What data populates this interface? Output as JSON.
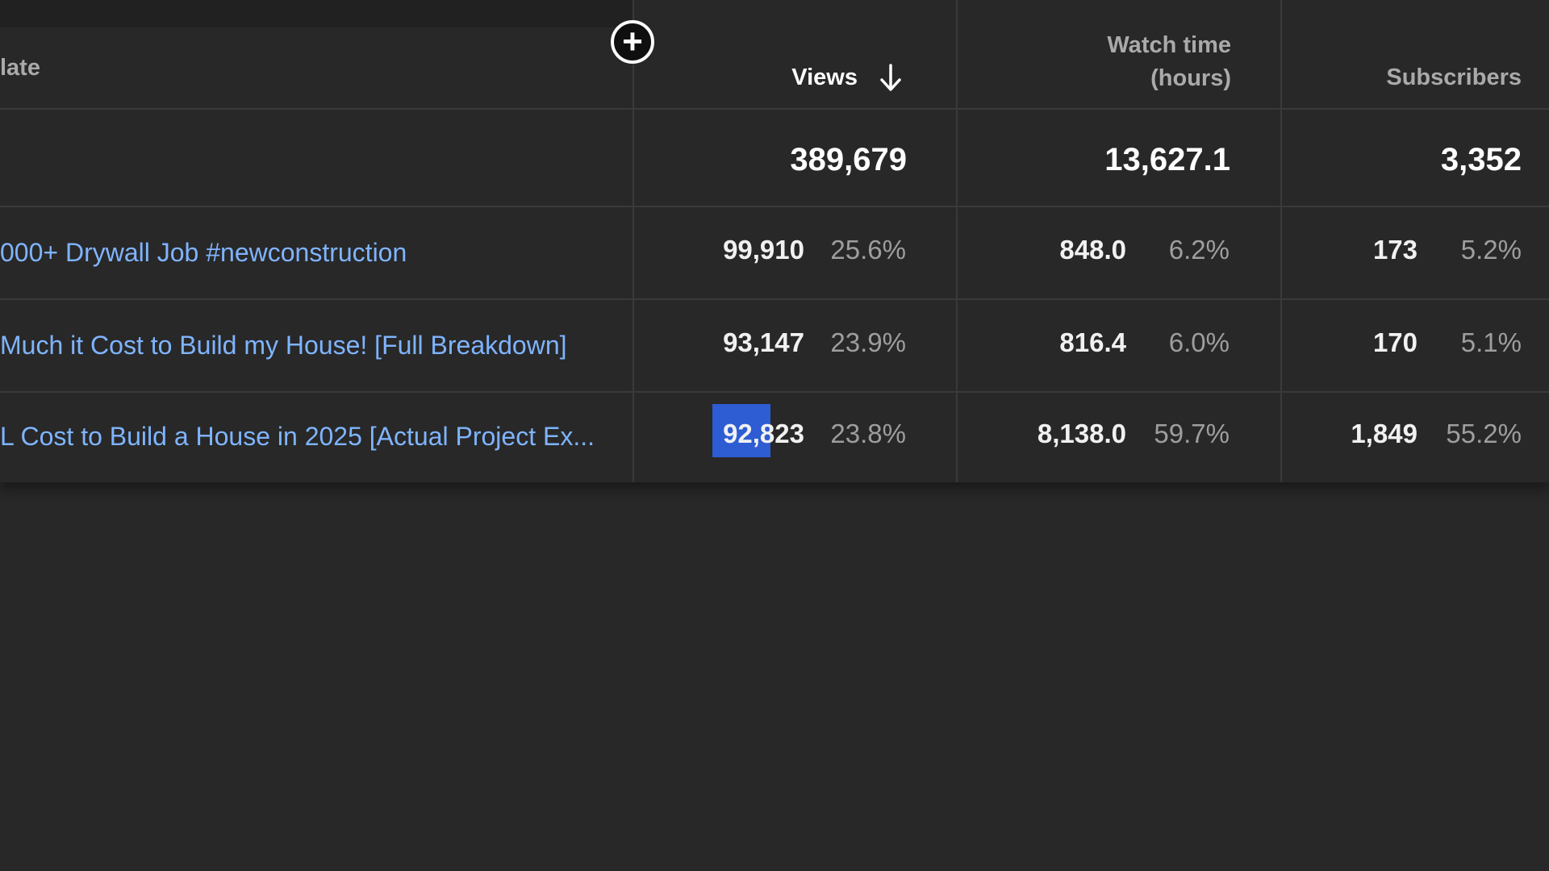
{
  "header": {
    "left_partial_label": "late",
    "views_label": "Views",
    "watch_time_line1": "Watch time",
    "watch_time_line2": "(hours)",
    "subscribers_label": "Subscribers",
    "add_column_glyph": "+",
    "sort_icon": "arrow-down-icon"
  },
  "totals": {
    "views": "389,679",
    "watch_time": "13,627.1",
    "subscribers": "3,352"
  },
  "rows": [
    {
      "title": "000+ Drywall Job #newconstruction",
      "views": "99,910",
      "views_pct": "25.6%",
      "watch_time": "848.0",
      "watch_time_pct": "6.2%",
      "subscribers": "173",
      "subscribers_pct": "5.2%"
    },
    {
      "title": " Much it Cost to Build my House! [Full Breakdown]",
      "views": "93,147",
      "views_pct": "23.9%",
      "watch_time": "816.4",
      "watch_time_pct": "6.0%",
      "subscribers": "170",
      "subscribers_pct": "5.1%"
    },
    {
      "title": "L Cost to Build a House in 2025 [Actual Project Ex...",
      "views": "92,823",
      "views_pct": "23.8%",
      "watch_time": "8,138.0",
      "watch_time_pct": "59.7%",
      "subscribers": "1,849",
      "subscribers_pct": "55.2%"
    }
  ],
  "colors": {
    "background": "#282828",
    "link": "#7fb4ff",
    "selection": "#2d5cd3"
  }
}
